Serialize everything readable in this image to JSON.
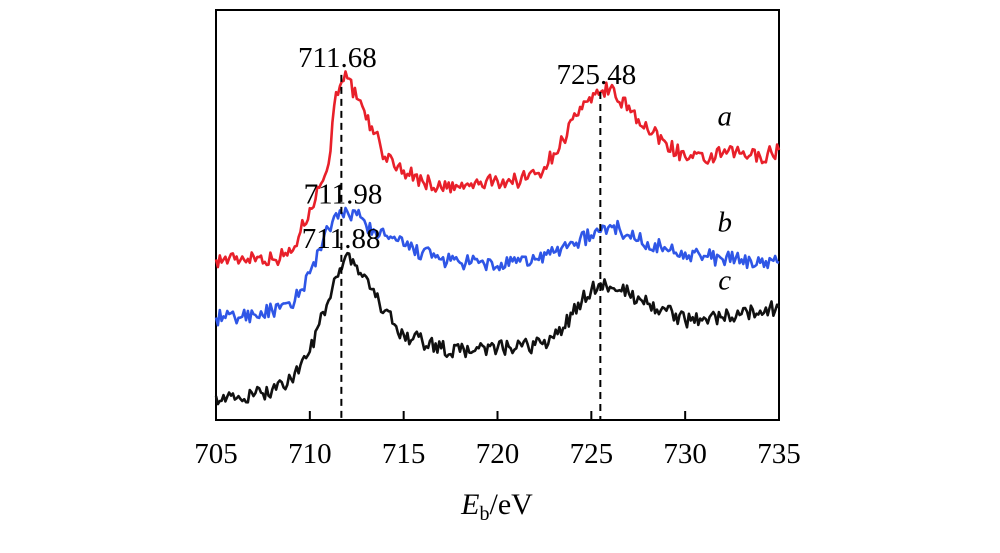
{
  "chart_data": {
    "type": "line",
    "xlabel_main": "E",
    "xlabel_sub": "b",
    "xlabel_rest": "/eV",
    "xlim": [
      705,
      735
    ],
    "xticks": [
      "705",
      "710",
      "715",
      "720",
      "725",
      "730",
      "735"
    ],
    "yticks_shown": false,
    "series": [
      {
        "name": "a",
        "color": "#e8202a",
        "x": [
          705,
          706,
          707,
          708,
          709,
          709.5,
          710,
          710.5,
          711,
          711.3,
          711.68,
          712,
          712.5,
          713,
          713.5,
          714,
          715,
          716,
          717,
          718,
          719,
          720,
          721,
          722,
          722.5,
          723,
          723.5,
          724,
          724.5,
          725,
          725.48,
          726,
          726.5,
          727,
          727.5,
          728,
          729,
          730,
          731,
          732,
          733,
          734,
          735
        ],
        "y": [
          0.17,
          0.17,
          0.18,
          0.17,
          0.19,
          0.25,
          0.32,
          0.38,
          0.45,
          0.62,
          0.71,
          0.7,
          0.64,
          0.58,
          0.54,
          0.47,
          0.43,
          0.4,
          0.38,
          0.38,
          0.39,
          0.4,
          0.4,
          0.42,
          0.44,
          0.48,
          0.52,
          0.58,
          0.61,
          0.63,
          0.66,
          0.67,
          0.63,
          0.62,
          0.58,
          0.55,
          0.51,
          0.47,
          0.46,
          0.48,
          0.48,
          0.47,
          0.49
        ]
      },
      {
        "name": "b",
        "color": "#2f56e6",
        "x": [
          705,
          706,
          707,
          708,
          709,
          709.5,
          710,
          710.5,
          711,
          711.5,
          711.98,
          712.5,
          713,
          713.5,
          714,
          715,
          716,
          717,
          718,
          719,
          720,
          721,
          722,
          723,
          724,
          725,
          725.48,
          726,
          726.5,
          727,
          728,
          729,
          730,
          731,
          732,
          733,
          734,
          735
        ],
        "y": [
          0.0,
          0.0,
          0.01,
          0.02,
          0.03,
          0.08,
          0.13,
          0.2,
          0.26,
          0.29,
          0.31,
          0.3,
          0.27,
          0.25,
          0.24,
          0.21,
          0.19,
          0.17,
          0.16,
          0.16,
          0.15,
          0.16,
          0.17,
          0.19,
          0.22,
          0.24,
          0.25,
          0.27,
          0.26,
          0.24,
          0.22,
          0.2,
          0.19,
          0.18,
          0.17,
          0.17,
          0.16,
          0.16
        ]
      },
      {
        "name": "c",
        "color": "#111111",
        "x": [
          705,
          706,
          707,
          708,
          709,
          709.5,
          710,
          710.5,
          711,
          711.5,
          711.88,
          712.3,
          712.7,
          713,
          713.5,
          714,
          714.5,
          715,
          716,
          717,
          718,
          719,
          720,
          721,
          722,
          723,
          723.5,
          724,
          724.5,
          725,
          725.48,
          726,
          726.5,
          727,
          728,
          729,
          730,
          731,
          732,
          733,
          734,
          735
        ],
        "y": [
          -0.23,
          -0.24,
          -0.23,
          -0.21,
          -0.18,
          -0.14,
          -0.1,
          -0.02,
          0.05,
          0.12,
          0.18,
          0.17,
          0.13,
          0.12,
          0.06,
          0.02,
          -0.02,
          -0.05,
          -0.07,
          -0.09,
          -0.1,
          -0.09,
          -0.09,
          -0.09,
          -0.08,
          -0.06,
          -0.03,
          0.01,
          0.05,
          0.08,
          0.1,
          0.09,
          0.08,
          0.07,
          0.04,
          0.02,
          -0.01,
          0.0,
          0.0,
          0.01,
          0.02,
          0.03
        ]
      }
    ],
    "peak_labels": [
      {
        "text": "711.68",
        "x": 711.68,
        "series": "a"
      },
      {
        "text": "725.48",
        "x": 725.48,
        "series": "a"
      },
      {
        "text": "711.98",
        "x": 711.98,
        "series": "b"
      },
      {
        "text": "711.88",
        "x": 711.88,
        "series": "c"
      }
    ],
    "dashed_lines_x": [
      711.68,
      725.48
    ],
    "curve_labels": [
      "a",
      "b",
      "c"
    ]
  }
}
